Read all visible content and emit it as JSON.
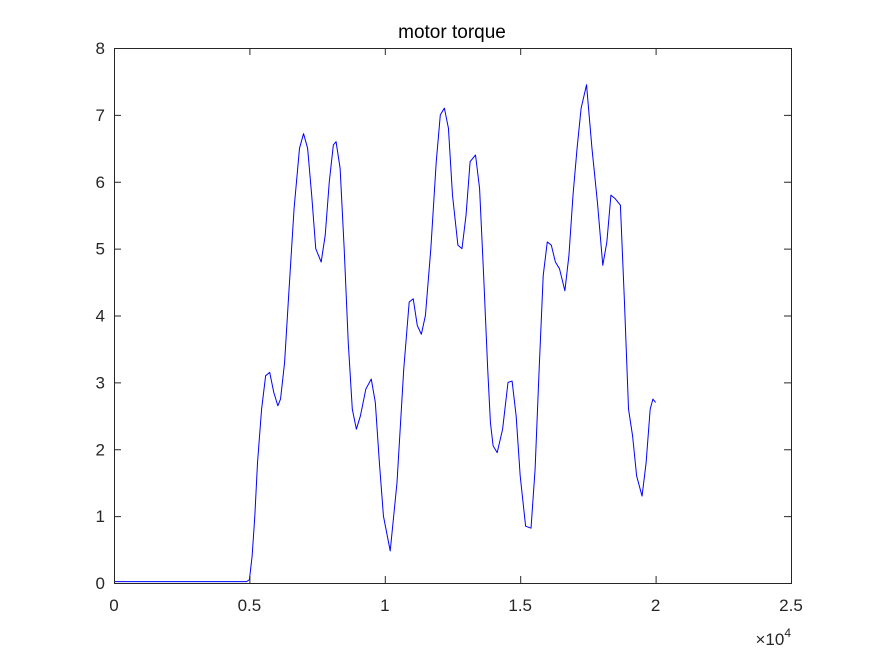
{
  "chart_data": {
    "type": "line",
    "title": "motor torque",
    "xlabel": "",
    "ylabel": "",
    "xlim": [
      0,
      25000
    ],
    "ylim": [
      0,
      8
    ],
    "x_ticks": [
      0,
      5000,
      10000,
      15000,
      20000,
      25000
    ],
    "x_tick_labels": [
      "0",
      "0.5",
      "1",
      "1.5",
      "2",
      "2.5"
    ],
    "x_exponent_label": {
      "base": "×10",
      "power": "4"
    },
    "y_ticks": [
      0,
      1,
      2,
      3,
      4,
      5,
      6,
      7,
      8
    ],
    "y_tick_labels": [
      "0",
      "1",
      "2",
      "3",
      "4",
      "5",
      "6",
      "7",
      "8"
    ],
    "grid": false,
    "series": [
      {
        "color": "#0000ff",
        "x": [
          0,
          4900,
          5000,
          5100,
          5200,
          5300,
          5450,
          5600,
          5750,
          5900,
          6050,
          6150,
          6300,
          6450,
          6650,
          6850,
          7000,
          7150,
          7300,
          7450,
          7650,
          7800,
          7950,
          8100,
          8200,
          8350,
          8500,
          8650,
          8800,
          8950,
          9100,
          9300,
          9500,
          9650,
          9800,
          9950,
          10200,
          10450,
          10700,
          10900,
          11050,
          11200,
          11350,
          11500,
          11700,
          11900,
          12050,
          12200,
          12350,
          12500,
          12700,
          12850,
          13000,
          13150,
          13350,
          13500,
          13650,
          13800,
          13900,
          14000,
          14150,
          14350,
          14550,
          14700,
          14850,
          15000,
          15200,
          15400,
          15550,
          15700,
          15850,
          16000,
          16150,
          16300,
          16450,
          16650,
          16800,
          16950,
          17100,
          17250,
          17450,
          17650,
          17850,
          18050,
          18200,
          18350,
          18500,
          18700,
          18850,
          19000,
          19150,
          19300,
          19500,
          19650,
          19800,
          19900,
          20000
        ],
        "y": [
          0.02,
          0.02,
          0.05,
          0.4,
          1.0,
          1.8,
          2.6,
          3.1,
          3.15,
          2.85,
          2.65,
          2.75,
          3.3,
          4.3,
          5.6,
          6.5,
          6.72,
          6.5,
          5.8,
          5.0,
          4.8,
          5.2,
          6.0,
          6.55,
          6.6,
          6.2,
          5.0,
          3.6,
          2.6,
          2.3,
          2.5,
          2.9,
          3.05,
          2.7,
          1.8,
          1.0,
          0.48,
          1.5,
          3.2,
          4.2,
          4.25,
          3.85,
          3.72,
          4.0,
          5.0,
          6.3,
          7.0,
          7.1,
          6.8,
          5.8,
          5.05,
          5.0,
          5.5,
          6.3,
          6.4,
          5.9,
          4.6,
          3.2,
          2.4,
          2.05,
          1.95,
          2.3,
          3.0,
          3.02,
          2.5,
          1.6,
          0.85,
          0.82,
          1.7,
          3.2,
          4.6,
          5.1,
          5.05,
          4.8,
          4.7,
          4.37,
          4.9,
          5.8,
          6.5,
          7.1,
          7.45,
          6.5,
          5.7,
          4.75,
          5.1,
          5.8,
          5.75,
          5.65,
          4.2,
          2.6,
          2.2,
          1.6,
          1.3,
          1.8,
          2.6,
          2.75,
          2.7
        ]
      }
    ]
  }
}
